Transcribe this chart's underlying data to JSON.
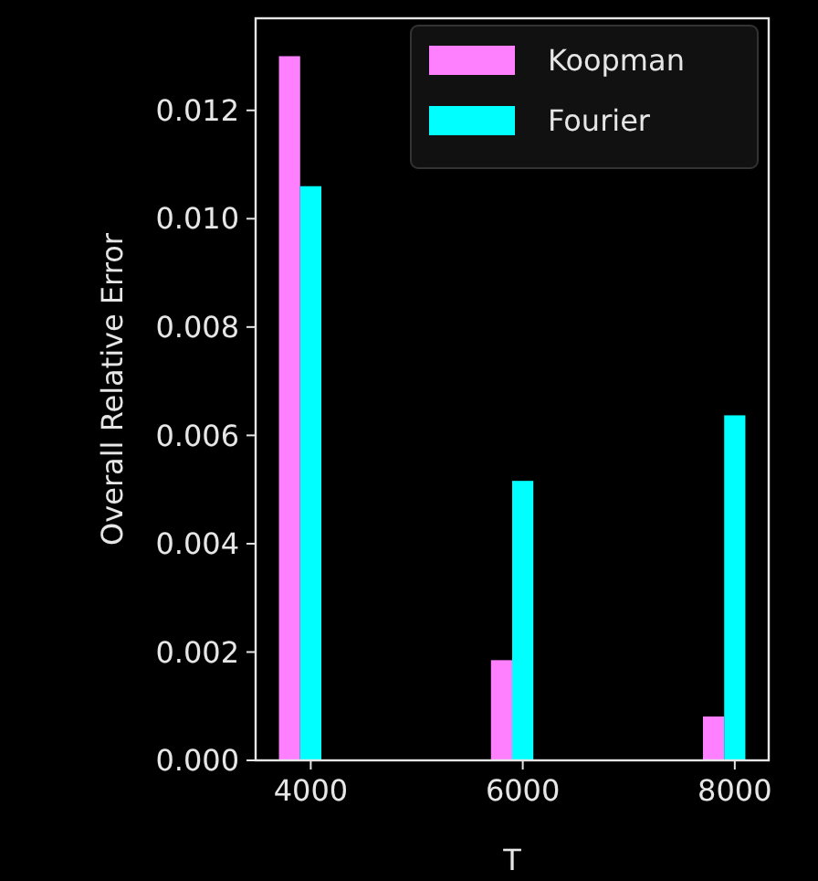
{
  "chart_data": {
    "type": "bar",
    "xlabel": "T",
    "ylabel": "Overall Relative Error",
    "series": [
      {
        "name": "Koopman",
        "color": "#ff80ff",
        "x": [
          3800,
          5800,
          7800
        ],
        "values": [
          0.013,
          0.00185,
          0.00081
        ]
      },
      {
        "name": "Fourier",
        "color": "#00ffff",
        "x": [
          4000,
          6000,
          8000
        ],
        "values": [
          0.0106,
          0.00516,
          0.00637
        ]
      }
    ],
    "xlim": [
      3480,
      8320
    ],
    "xticks": [
      4000,
      6000,
      8000
    ],
    "ylim": [
      0,
      0.0137
    ],
    "yticks": [
      {
        "value": 0,
        "label": "0.000"
      },
      {
        "value": 0.002,
        "label": "0.002"
      },
      {
        "value": 0.004,
        "label": "0.004"
      },
      {
        "value": 0.006,
        "label": "0.006"
      },
      {
        "value": 0.008,
        "label": "0.008"
      },
      {
        "value": 0.01,
        "label": "0.010"
      },
      {
        "value": 0.012,
        "label": "0.012"
      }
    ],
    "legend": "top right",
    "grid": false
  }
}
